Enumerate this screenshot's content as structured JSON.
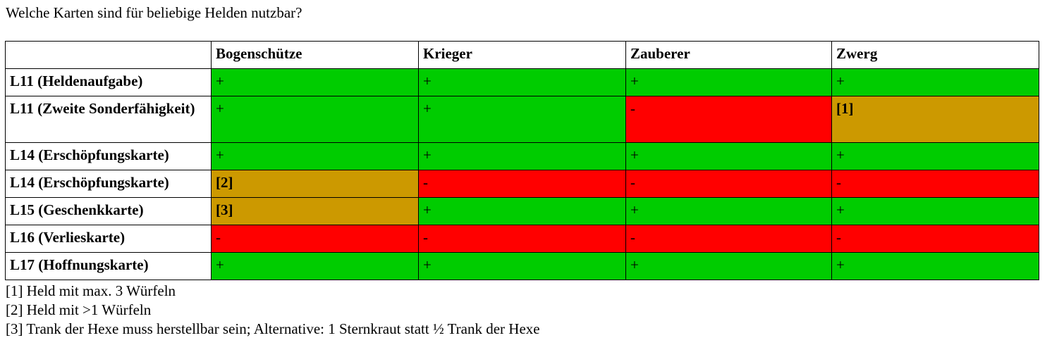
{
  "question": "Welche Karten sind für beliebige Helden nutzbar?",
  "table": {
    "corner": "",
    "columns": [
      "Bogenschütze",
      "Krieger",
      "Zauberer",
      "Zwerg"
    ],
    "rows": [
      {
        "label": "L11 (Heldenaufgabe)",
        "cells": [
          "+",
          "+",
          "+",
          "+"
        ],
        "status": [
          "yes",
          "yes",
          "yes",
          "yes"
        ]
      },
      {
        "label": "L11 (Zweite Sonderfähigkeit)",
        "cells": [
          "+",
          "+",
          "-",
          "[1]"
        ],
        "status": [
          "yes",
          "yes",
          "no",
          "note"
        ]
      },
      {
        "label": "L14 (Erschöpfungskarte)",
        "cells": [
          "+",
          "+",
          "+",
          "+"
        ],
        "status": [
          "yes",
          "yes",
          "yes",
          "yes"
        ]
      },
      {
        "label": "L14 (Erschöpfungskarte)",
        "cells": [
          "[2]",
          "-",
          "-",
          "-"
        ],
        "status": [
          "note",
          "no",
          "no",
          "no"
        ]
      },
      {
        "label": "L15 (Geschenkkarte)",
        "cells": [
          "[3]",
          "+",
          "+",
          "+"
        ],
        "status": [
          "note",
          "yes",
          "yes",
          "yes"
        ]
      },
      {
        "label": "L16 (Verlieskarte)",
        "cells": [
          "-",
          "-",
          "-",
          "-"
        ],
        "status": [
          "no",
          "no",
          "no",
          "no"
        ]
      },
      {
        "label": "L17 (Hoffnungskarte)",
        "cells": [
          "+",
          "+",
          "+",
          "+"
        ],
        "status": [
          "yes",
          "yes",
          "yes",
          "yes"
        ]
      }
    ]
  },
  "notes": [
    "[1] Held mit max. 3 Würfeln",
    "[2] Held mit >1 Würfeln",
    "[3] Trank der Hexe muss herstellbar sein; Alternative: 1 Sternkraut statt ½ Trank der Hexe"
  ],
  "colors": {
    "yes": "#00cc00",
    "no": "#ff0000",
    "note": "#cc9900",
    "border": "#000000",
    "text": "#000000"
  }
}
